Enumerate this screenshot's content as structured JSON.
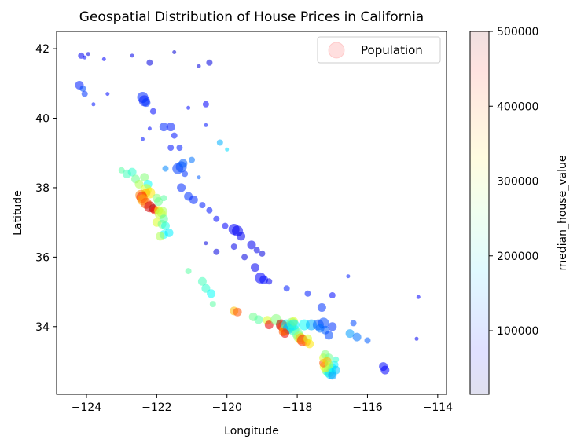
{
  "chart_data": {
    "type": "scatter",
    "title": "Geospatial Distribution of House Prices in California",
    "xlabel": "Longitude",
    "ylabel": "Latitude",
    "xlim": [
      -124.85,
      -113.75
    ],
    "ylim": [
      32.05,
      42.5
    ],
    "xticks": [
      -124,
      -122,
      -120,
      -118,
      -116,
      -114
    ],
    "yticks": [
      34,
      36,
      38,
      40,
      42
    ],
    "grid": false,
    "legend": {
      "placement": "top-right",
      "entries": [
        "Population"
      ]
    },
    "colorbar": {
      "label": "median_house_value",
      "range": [
        14999,
        500000
      ],
      "ticks": [
        100000,
        200000,
        300000,
        400000,
        500000
      ],
      "colormap": "jet",
      "alpha": 0.1
    },
    "series": [
      {
        "name": "Population",
        "encoding": "x=longitude, y=latitude, size=population, color=median_house_value",
        "points": [
          [
            -124.15,
            41.8,
            70000,
            2
          ],
          [
            -124.05,
            41.75,
            80000,
            1
          ],
          [
            -123.95,
            41.85,
            60000,
            1
          ],
          [
            -123.5,
            41.7,
            75000,
            1
          ],
          [
            -122.7,
            41.8,
            65000,
            1
          ],
          [
            -122.2,
            41.6,
            60000,
            2
          ],
          [
            -121.5,
            41.9,
            55000,
            1
          ],
          [
            -120.8,
            41.5,
            60000,
            1
          ],
          [
            -120.5,
            41.6,
            60000,
            2
          ],
          [
            -124.2,
            40.95,
            90000,
            3
          ],
          [
            -124.1,
            40.85,
            110000,
            2
          ],
          [
            -124.05,
            40.7,
            100000,
            2
          ],
          [
            -123.8,
            40.4,
            85000,
            1
          ],
          [
            -123.4,
            40.7,
            80000,
            1
          ],
          [
            -122.4,
            40.6,
            95000,
            4
          ],
          [
            -122.35,
            40.5,
            90000,
            4
          ],
          [
            -122.3,
            40.45,
            100000,
            3
          ],
          [
            -122.1,
            40.2,
            80000,
            2
          ],
          [
            -121.1,
            40.3,
            80000,
            1
          ],
          [
            -120.6,
            40.4,
            75000,
            2
          ],
          [
            -120.6,
            39.8,
            85000,
            1
          ],
          [
            -121.8,
            39.75,
            95000,
            3
          ],
          [
            -121.6,
            39.75,
            90000,
            3
          ],
          [
            -121.5,
            39.5,
            85000,
            2
          ],
          [
            -121.35,
            39.15,
            90000,
            2
          ],
          [
            -121.6,
            39.15,
            85000,
            2
          ],
          [
            -122.2,
            39.7,
            80000,
            1
          ],
          [
            -122.4,
            39.4,
            85000,
            1
          ],
          [
            -120.2,
            39.3,
            160000,
            2
          ],
          [
            -120.0,
            39.1,
            180000,
            1
          ],
          [
            -121.4,
            38.55,
            105000,
            4
          ],
          [
            -121.3,
            38.6,
            110000,
            4
          ],
          [
            -121.25,
            38.7,
            120000,
            3
          ],
          [
            -121.2,
            38.4,
            100000,
            2
          ],
          [
            -121.0,
            38.8,
            130000,
            2
          ],
          [
            -120.8,
            38.3,
            120000,
            1
          ],
          [
            -121.75,
            38.55,
            140000,
            2
          ],
          [
            -121.3,
            38.0,
            95000,
            3
          ],
          [
            -121.1,
            37.75,
            100000,
            3
          ],
          [
            -120.95,
            37.65,
            95000,
            3
          ],
          [
            -120.7,
            37.5,
            90000,
            2
          ],
          [
            -120.5,
            37.35,
            85000,
            2
          ],
          [
            -120.3,
            37.1,
            80000,
            2
          ],
          [
            -120.05,
            36.9,
            75000,
            2
          ],
          [
            -119.8,
            36.8,
            75000,
            4
          ],
          [
            -119.7,
            36.75,
            70000,
            4
          ],
          [
            -119.6,
            36.6,
            70000,
            3
          ],
          [
            -119.3,
            36.35,
            70000,
            3
          ],
          [
            -119.15,
            36.2,
            65000,
            2
          ],
          [
            -119.0,
            36.1,
            60000,
            2
          ],
          [
            -119.2,
            35.7,
            70000,
            3
          ],
          [
            -119.05,
            35.4,
            75000,
            4
          ],
          [
            -118.95,
            35.35,
            80000,
            3
          ],
          [
            -118.8,
            35.3,
            70000,
            2
          ],
          [
            -120.3,
            36.15,
            60000,
            2
          ],
          [
            -120.6,
            36.4,
            60000,
            1
          ],
          [
            -119.5,
            36.0,
            60000,
            2
          ],
          [
            -119.8,
            36.3,
            65000,
            2
          ],
          [
            -118.3,
            35.1,
            90000,
            2
          ],
          [
            -117.7,
            34.95,
            90000,
            2
          ],
          [
            -117.3,
            34.55,
            100000,
            3
          ],
          [
            -117.0,
            34.9,
            80000,
            2
          ],
          [
            -116.4,
            34.1,
            110000,
            2
          ],
          [
            -116.5,
            33.8,
            150000,
            3
          ],
          [
            -116.3,
            33.7,
            130000,
            3
          ],
          [
            -116.0,
            33.6,
            120000,
            2
          ],
          [
            -115.55,
            32.85,
            80000,
            3
          ],
          [
            -115.5,
            32.75,
            75000,
            3
          ],
          [
            -114.6,
            33.65,
            70000,
            1
          ],
          [
            -114.55,
            34.85,
            75000,
            1
          ],
          [
            -116.55,
            35.45,
            90000,
            1
          ],
          [
            -123.0,
            38.5,
            240000,
            2
          ],
          [
            -122.85,
            38.4,
            230000,
            3
          ],
          [
            -122.7,
            38.45,
            220000,
            3
          ],
          [
            -122.6,
            38.25,
            250000,
            3
          ],
          [
            -122.5,
            38.1,
            280000,
            3
          ],
          [
            -122.35,
            38.3,
            260000,
            3
          ],
          [
            -122.25,
            38.1,
            200000,
            3
          ],
          [
            -122.3,
            37.95,
            300000,
            4
          ],
          [
            -122.2,
            37.85,
            330000,
            4
          ],
          [
            -122.3,
            37.85,
            350000,
            3
          ],
          [
            -122.45,
            37.78,
            380000,
            4
          ],
          [
            -122.42,
            37.72,
            420000,
            4
          ],
          [
            -122.4,
            37.65,
            360000,
            4
          ],
          [
            -122.3,
            37.55,
            400000,
            4
          ],
          [
            -122.2,
            37.45,
            460000,
            4
          ],
          [
            -122.1,
            37.4,
            480000,
            3
          ],
          [
            -122.05,
            37.35,
            430000,
            3
          ],
          [
            -121.95,
            37.35,
            320000,
            3
          ],
          [
            -121.85,
            37.3,
            280000,
            4
          ],
          [
            -121.9,
            37.25,
            290000,
            4
          ],
          [
            -122.0,
            37.7,
            260000,
            3
          ],
          [
            -121.95,
            37.6,
            250000,
            3
          ],
          [
            -121.8,
            37.7,
            240000,
            2
          ],
          [
            -122.0,
            37.0,
            300000,
            3
          ],
          [
            -121.85,
            36.95,
            250000,
            3
          ],
          [
            -121.75,
            36.9,
            210000,
            3
          ],
          [
            -121.8,
            36.65,
            200000,
            3
          ],
          [
            -121.9,
            36.6,
            280000,
            3
          ],
          [
            -121.65,
            36.7,
            190000,
            3
          ],
          [
            -121.8,
            37.1,
            240000,
            3
          ],
          [
            -121.1,
            35.6,
            240000,
            2
          ],
          [
            -120.7,
            35.3,
            230000,
            3
          ],
          [
            -120.6,
            35.1,
            220000,
            3
          ],
          [
            -120.45,
            34.95,
            200000,
            3
          ],
          [
            -120.4,
            34.65,
            240000,
            2
          ],
          [
            -119.8,
            34.45,
            350000,
            3
          ],
          [
            -119.7,
            34.42,
            400000,
            3
          ],
          [
            -119.25,
            34.28,
            250000,
            3
          ],
          [
            -119.1,
            34.2,
            240000,
            3
          ],
          [
            -118.85,
            34.18,
            300000,
            3
          ],
          [
            -118.8,
            34.05,
            450000,
            3
          ],
          [
            -118.6,
            34.2,
            260000,
            4
          ],
          [
            -118.45,
            34.05,
            480000,
            4
          ],
          [
            -118.4,
            34.0,
            420000,
            4
          ],
          [
            -118.35,
            33.9,
            330000,
            4
          ],
          [
            -118.3,
            34.05,
            200000,
            4
          ],
          [
            -118.25,
            33.95,
            150000,
            4
          ],
          [
            -118.2,
            34.0,
            170000,
            4
          ],
          [
            -118.1,
            33.9,
            220000,
            4
          ],
          [
            -118.15,
            34.1,
            260000,
            4
          ],
          [
            -118.1,
            34.15,
            300000,
            3
          ],
          [
            -118.0,
            33.8,
            240000,
            4
          ],
          [
            -117.95,
            33.7,
            280000,
            4
          ],
          [
            -117.9,
            33.65,
            350000,
            4
          ],
          [
            -117.85,
            33.6,
            420000,
            4
          ],
          [
            -117.75,
            33.55,
            380000,
            3
          ],
          [
            -117.7,
            33.65,
            300000,
            3
          ],
          [
            -117.65,
            33.5,
            330000,
            3
          ],
          [
            -118.35,
            33.8,
            450000,
            3
          ],
          [
            -118.4,
            33.85,
            400000,
            3
          ],
          [
            -118.1,
            34.05,
            190000,
            4
          ],
          [
            -117.8,
            34.05,
            200000,
            4
          ],
          [
            -117.6,
            34.05,
            160000,
            4
          ],
          [
            -117.4,
            34.05,
            120000,
            4
          ],
          [
            -117.25,
            34.1,
            110000,
            4
          ],
          [
            -117.35,
            33.95,
            130000,
            3
          ],
          [
            -117.2,
            33.9,
            120000,
            3
          ],
          [
            -117.1,
            33.75,
            110000,
            3
          ],
          [
            -117.0,
            34.0,
            100000,
            3
          ],
          [
            -117.15,
            32.75,
            250000,
            4
          ],
          [
            -117.1,
            32.7,
            220000,
            4
          ],
          [
            -117.05,
            32.65,
            180000,
            4
          ],
          [
            -117.0,
            32.6,
            150000,
            3
          ],
          [
            -117.2,
            32.85,
            320000,
            4
          ],
          [
            -117.25,
            32.95,
            400000,
            3
          ],
          [
            -117.25,
            33.1,
            300000,
            3
          ],
          [
            -117.2,
            33.2,
            260000,
            3
          ],
          [
            -117.1,
            33.1,
            250000,
            3
          ],
          [
            -117.0,
            32.8,
            200000,
            3
          ],
          [
            -116.95,
            32.9,
            190000,
            3
          ],
          [
            -116.9,
            32.75,
            170000,
            3
          ],
          [
            -117.15,
            33.0,
            350000,
            3
          ],
          [
            -116.9,
            33.05,
            220000,
            2
          ],
          [
            -117.1,
            32.9,
            280000,
            3
          ]
        ]
      }
    ],
    "point_format": [
      "longitude",
      "latitude",
      "median_house_value",
      "population_size_class_1_to_4"
    ]
  }
}
